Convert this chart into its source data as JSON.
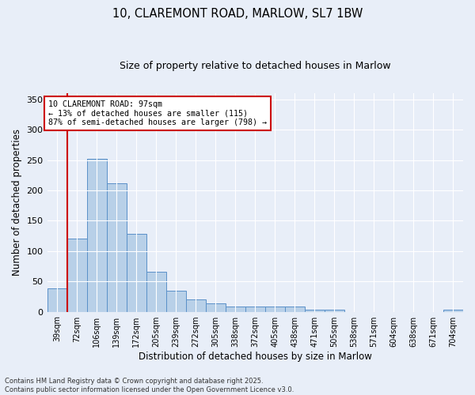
{
  "title_line1": "10, CLAREMONT ROAD, MARLOW, SL7 1BW",
  "title_line2": "Size of property relative to detached houses in Marlow",
  "xlabel": "Distribution of detached houses by size in Marlow",
  "ylabel": "Number of detached properties",
  "categories": [
    "39sqm",
    "72sqm",
    "106sqm",
    "139sqm",
    "172sqm",
    "205sqm",
    "239sqm",
    "272sqm",
    "305sqm",
    "338sqm",
    "372sqm",
    "405sqm",
    "438sqm",
    "471sqm",
    "505sqm",
    "538sqm",
    "571sqm",
    "604sqm",
    "638sqm",
    "671sqm",
    "704sqm"
  ],
  "values": [
    38,
    121,
    252,
    212,
    128,
    66,
    35,
    20,
    14,
    8,
    8,
    8,
    8,
    4,
    3,
    0,
    0,
    0,
    0,
    0,
    4
  ],
  "bar_color": "#b8d0e8",
  "bar_edge_color": "#5a90c8",
  "background_color": "#e8eef8",
  "grid_color": "#ffffff",
  "annotation_text": "10 CLAREMONT ROAD: 97sqm\n← 13% of detached houses are smaller (115)\n87% of semi-detached houses are larger (798) →",
  "annotation_box_color": "#ffffff",
  "annotation_border_color": "#cc0000",
  "vline_color": "#cc0000",
  "vline_x_index": 0.5,
  "footer_text": "Contains HM Land Registry data © Crown copyright and database right 2025.\nContains public sector information licensed under the Open Government Licence v3.0.",
  "ylim": [
    0,
    360
  ],
  "yticks": [
    0,
    50,
    100,
    150,
    200,
    250,
    300,
    350
  ]
}
